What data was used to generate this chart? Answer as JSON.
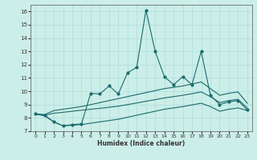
{
  "xlabel": "Humidex (Indice chaleur)",
  "background_color": "#cceee8",
  "line_color": "#1a6b6b",
  "grid_color": "#aadddd",
  "xlim": [
    -0.5,
    23.5
  ],
  "ylim": [
    7,
    16.5
  ],
  "yticks": [
    7,
    8,
    9,
    10,
    11,
    12,
    13,
    14,
    15,
    16
  ],
  "xticks": [
    0,
    1,
    2,
    3,
    4,
    5,
    6,
    7,
    8,
    9,
    10,
    11,
    12,
    13,
    14,
    15,
    16,
    17,
    18,
    19,
    20,
    21,
    22,
    23
  ],
  "line_zigzag": {
    "x": [
      0,
      1,
      2,
      3,
      4,
      5,
      6,
      7,
      8,
      9,
      10,
      11,
      12,
      13,
      14,
      15,
      16,
      17,
      18,
      19,
      20,
      21,
      22,
      23
    ],
    "y": [
      8.3,
      8.2,
      7.7,
      7.4,
      7.5,
      7.55,
      9.85,
      9.8,
      10.4,
      9.8,
      11.4,
      11.8,
      16.1,
      13.0,
      11.1,
      10.5,
      11.1,
      10.5,
      13.0,
      9.7,
      9.0,
      9.2,
      9.3,
      8.6
    ]
  },
  "line_upper": {
    "x": [
      0,
      1,
      2,
      3,
      4,
      5,
      6,
      7,
      8,
      9,
      10,
      11,
      12,
      13,
      14,
      15,
      16,
      17,
      18,
      19,
      20,
      21,
      22,
      23
    ],
    "y": [
      8.3,
      8.25,
      8.55,
      8.65,
      8.75,
      8.85,
      9.0,
      9.15,
      9.3,
      9.45,
      9.6,
      9.75,
      9.9,
      10.05,
      10.2,
      10.3,
      10.4,
      10.55,
      10.7,
      10.2,
      9.7,
      9.85,
      9.95,
      9.1
    ]
  },
  "line_mid": {
    "x": [
      0,
      1,
      2,
      3,
      4,
      5,
      6,
      7,
      8,
      9,
      10,
      11,
      12,
      13,
      14,
      15,
      16,
      17,
      18,
      19,
      20,
      21,
      22,
      23
    ],
    "y": [
      8.3,
      8.2,
      8.35,
      8.42,
      8.5,
      8.58,
      8.65,
      8.72,
      8.8,
      8.88,
      9.0,
      9.12,
      9.25,
      9.37,
      9.5,
      9.6,
      9.7,
      9.82,
      9.95,
      9.6,
      9.15,
      9.3,
      9.4,
      8.75
    ]
  },
  "line_lower": {
    "x": [
      0,
      1,
      2,
      3,
      4,
      5,
      6,
      7,
      8,
      9,
      10,
      11,
      12,
      13,
      14,
      15,
      16,
      17,
      18,
      19,
      20,
      21,
      22,
      23
    ],
    "y": [
      8.3,
      8.15,
      7.7,
      7.4,
      7.45,
      7.5,
      7.6,
      7.7,
      7.8,
      7.9,
      8.05,
      8.2,
      8.35,
      8.5,
      8.65,
      8.75,
      8.85,
      8.98,
      9.1,
      8.85,
      8.5,
      8.65,
      8.75,
      8.55
    ]
  }
}
